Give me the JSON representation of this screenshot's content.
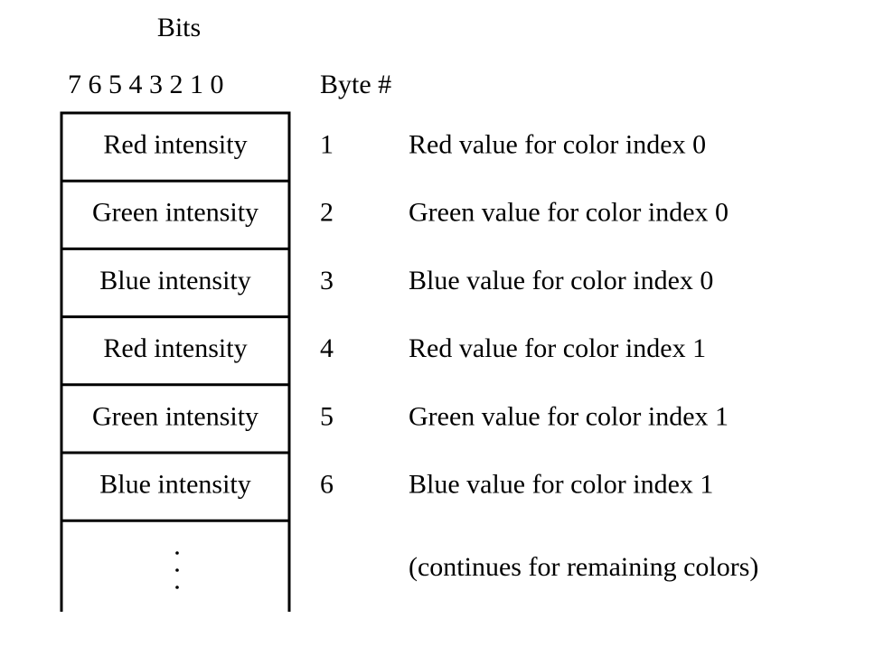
{
  "header": {
    "bits": "Bits",
    "bit_numbers": "7 6 5 4 3 2 1 0",
    "byte_column": "Byte #"
  },
  "rows": [
    {
      "cell": "Red intensity",
      "byte": 1,
      "description": "Red value for color index 0"
    },
    {
      "cell": "Green intensity",
      "byte": 2,
      "description": "Green value for color index 0"
    },
    {
      "cell": "Blue intensity",
      "byte": 3,
      "description": "Blue value for color index 0"
    },
    {
      "cell": "Red intensity",
      "byte": 4,
      "description": "Red value for color index 1"
    },
    {
      "cell": "Green intensity",
      "byte": 5,
      "description": "Green value for color index 1"
    },
    {
      "cell": "Blue intensity",
      "byte": 6,
      "description": "Blue value for color index 1"
    }
  ],
  "continuation": "(continues for remaining colors)"
}
